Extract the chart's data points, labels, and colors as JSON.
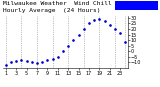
{
  "title1": "Milwaukee Weather  Wind Chill",
  "title2": "Hourly Average  (24 Hours)",
  "hours": [
    0,
    1,
    2,
    3,
    4,
    5,
    6,
    7,
    8,
    9,
    10,
    11,
    12,
    13,
    14,
    15,
    16,
    17,
    18,
    19,
    20,
    21,
    22,
    23
  ],
  "wind_chill": [
    -12,
    -10,
    -9,
    -8,
    -9,
    -10,
    -11,
    -10,
    -8,
    -7,
    -5,
    0,
    5,
    10,
    15,
    20,
    25,
    28,
    29,
    27,
    24,
    20,
    16,
    8
  ],
  "dot_color": "#0000cc",
  "bg_color": "#ffffff",
  "grid_color": "#888888",
  "legend_rect_color": "#0000ff",
  "ylim_min": -15,
  "ylim_max": 32,
  "vline_positions": [
    0,
    3,
    6,
    9,
    12,
    15,
    18,
    21,
    23
  ],
  "title_fontsize": 4.5,
  "tick_fontsize": 3.5,
  "ylabel_right": true,
  "yticks": [
    -10,
    -5,
    0,
    5,
    10,
    15,
    20,
    25,
    30
  ],
  "xtick_labels": [
    "1",
    "3",
    "5",
    "7",
    "9",
    "11",
    "13",
    "15",
    "17",
    "19",
    "21",
    "23"
  ],
  "xtick_pos": [
    0,
    2,
    4,
    6,
    8,
    10,
    12,
    14,
    16,
    18,
    20,
    22
  ]
}
